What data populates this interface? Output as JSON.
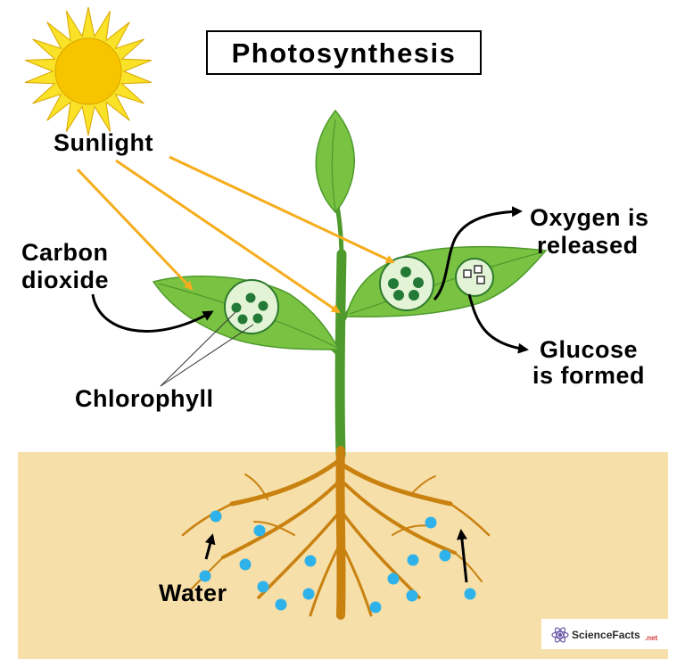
{
  "title": "Photosynthesis",
  "labels": {
    "sunlight": "Sunlight",
    "carbon_dioxide_line1": "Carbon",
    "carbon_dioxide_line2": "dioxide",
    "chlorophyll": "Chlorophyll",
    "oxygen_line1": "Oxygen is",
    "oxygen_line2": "released",
    "glucose_line1": "Glucose",
    "glucose_line2": "is formed",
    "water": "Water"
  },
  "watermark": {
    "brand": "ScienceFacts",
    "suffix": ".net"
  },
  "colors": {
    "soil": "#f6dfa9",
    "sun": "#f7c500",
    "sun_rays": "#f9e227",
    "arrow_orange": "#f5ad1d",
    "leaf": "#79c242",
    "leaf_dark": "#4e9a2c",
    "stem": "#4e9a2c",
    "root": "#c9810f",
    "chloroplast_dot": "#237a37",
    "chloroplast_fill": "#e3f4d6",
    "water_drop": "#2fb2ea"
  }
}
